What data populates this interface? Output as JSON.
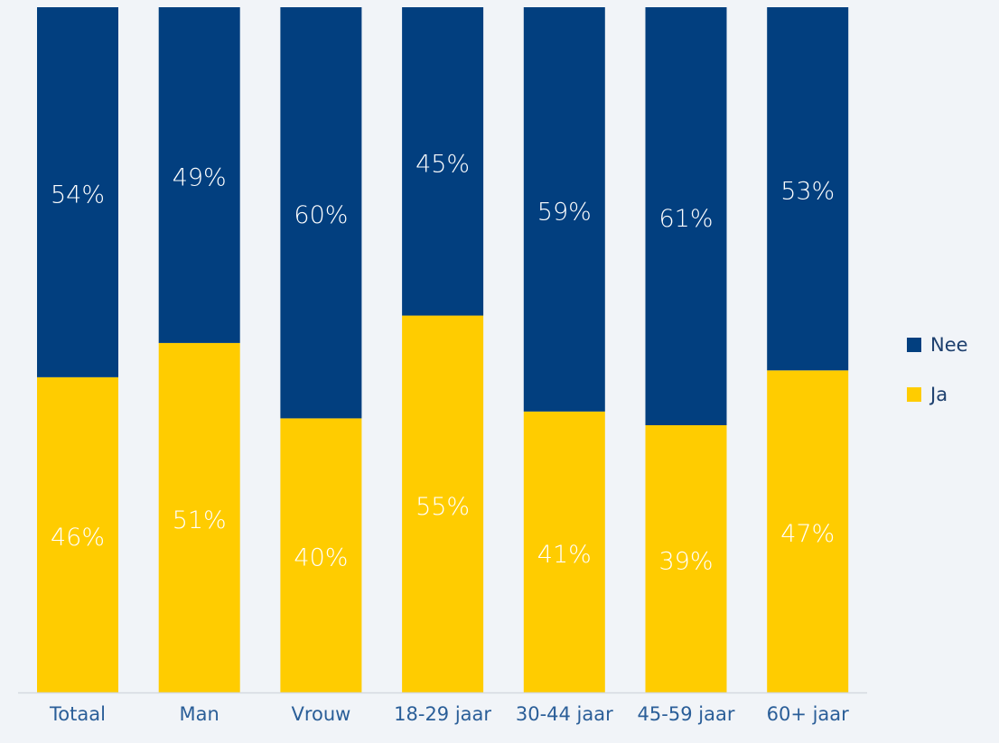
{
  "chart_data": {
    "type": "stacked_bar",
    "categories": [
      "Totaal",
      "Man",
      "Vrouw",
      "18-29 jaar",
      "30-44 jaar",
      "45-59 jaar",
      "60+ jaar"
    ],
    "series": [
      {
        "name": "Ja",
        "color": "#ffcc00",
        "values": [
          46,
          51,
          40,
          55,
          41,
          39,
          47
        ],
        "value_labels": [
          "46%",
          "51%",
          "40%",
          "55%",
          "41%",
          "39%",
          "47%"
        ]
      },
      {
        "name": "Nee",
        "color": "#023f7f",
        "values": [
          54,
          49,
          60,
          45,
          59,
          61,
          53
        ],
        "value_labels": [
          "54%",
          "49%",
          "60%",
          "45%",
          "59%",
          "61%",
          "53%"
        ]
      }
    ],
    "ylim": [
      0,
      100
    ],
    "legend": "right"
  }
}
